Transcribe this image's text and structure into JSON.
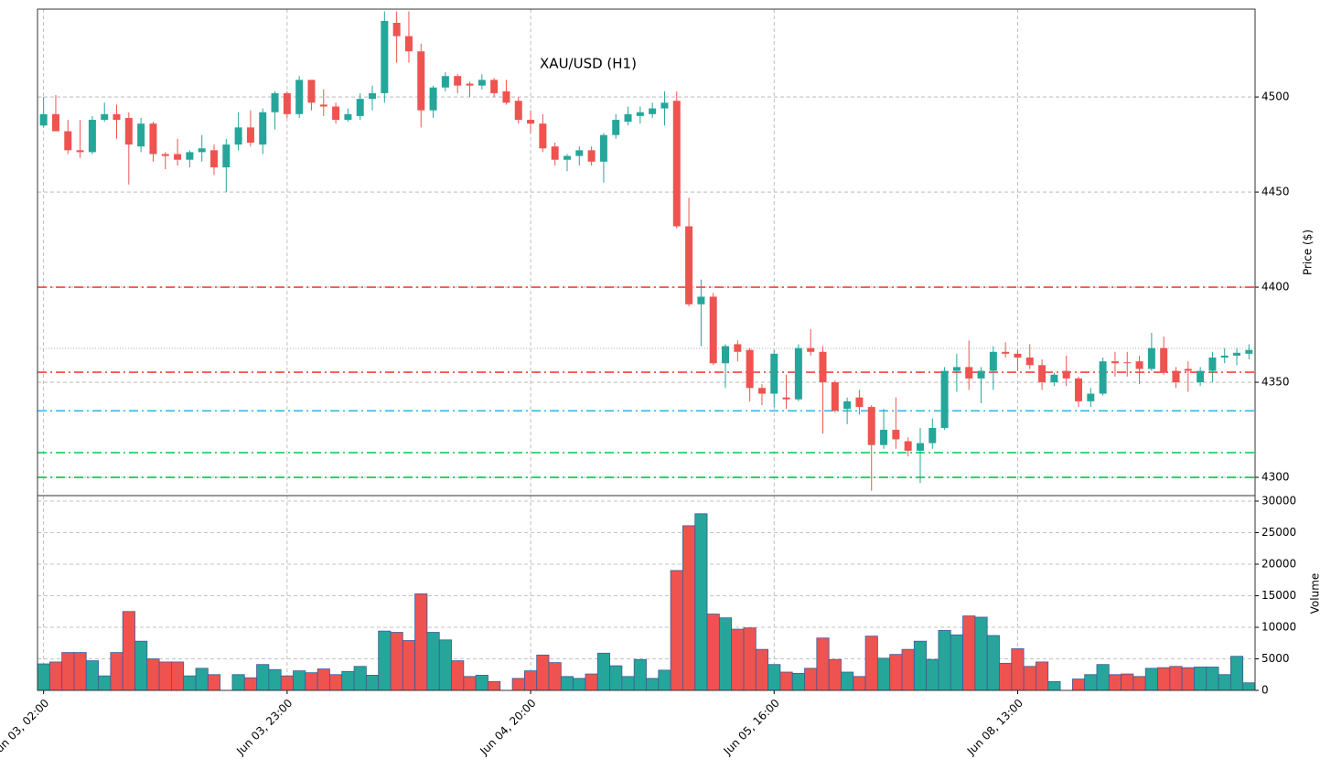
{
  "chart_data": [
    {
      "type": "candlestick",
      "title": "XAU/USD (H1)",
      "y_label": "Price ($)",
      "up_color": "#26a69a",
      "down_color": "#ef5350",
      "open": [
        4485,
        4491,
        4482,
        4472,
        4471,
        4488,
        4491,
        4489,
        4474,
        4486,
        4470,
        4470,
        4467,
        4471,
        4472,
        4463,
        4475,
        4484,
        4475,
        4492,
        4502,
        4491,
        4509,
        4496,
        4495,
        4488,
        4490,
        4499,
        4502,
        4539,
        4532,
        4524,
        4493,
        4505,
        4511,
        4507,
        4506,
        4509,
        4503,
        4498,
        4488,
        4486,
        4474,
        4467,
        4469,
        4472,
        4466,
        4480,
        4487,
        4490,
        4491,
        4494,
        4498,
        4432,
        4391,
        4395,
        4360,
        4370,
        4367,
        4347,
        4344,
        4342,
        4341,
        4368,
        4366,
        4350,
        4336,
        4342,
        4337,
        4317,
        4325,
        4319,
        4314,
        4318,
        4326,
        4356,
        4358,
        4352,
        4356,
        4366,
        4365,
        4363,
        4359,
        4350,
        4356,
        4352,
        4340,
        4344,
        4361,
        4360.5,
        4361,
        4357,
        4368,
        4356,
        4357,
        4350,
        4356,
        4363,
        4364,
        4365
      ],
      "high": [
        4500,
        4501,
        4488,
        4488,
        4490,
        4497,
        4496,
        4492,
        4489,
        4487,
        4471,
        4478,
        4472,
        4480,
        4475,
        4478,
        4492,
        4493,
        4494,
        4503,
        4503,
        4511,
        4509,
        4504,
        4497,
        4494,
        4502,
        4506,
        4545,
        4545,
        4545,
        4528,
        4506,
        4513,
        4512,
        4508,
        4512,
        4510,
        4509,
        4500,
        4493,
        4491,
        4476,
        4470,
        4474,
        4474,
        4481,
        4491,
        4495,
        4495,
        4497,
        4503,
        4503,
        4447,
        4404,
        4397,
        4370,
        4372,
        4368,
        4349,
        4367,
        4354,
        4370,
        4378,
        4369,
        4351,
        4342,
        4346,
        4338,
        4336,
        4342,
        4321,
        4326,
        4331,
        4358,
        4365,
        4372,
        4358,
        4369,
        4371,
        4367,
        4370,
        4362,
        4355,
        4364,
        4353,
        4347,
        4363,
        4366,
        4366,
        4364,
        4376,
        4374,
        4358,
        4361,
        4358,
        4366,
        4368,
        4368,
        4370
      ],
      "low": [
        4484,
        4482,
        4470,
        4468,
        4470,
        4487,
        4478,
        4454,
        4471,
        4466,
        4462,
        4464,
        4463,
        4466,
        4459,
        4450,
        4472,
        4474,
        4470,
        4483,
        4489,
        4489,
        4493,
        4490,
        4486,
        4487,
        4488,
        4493,
        4497,
        4518,
        4518,
        4484,
        4489,
        4503,
        4502,
        4500,
        4504,
        4500,
        4496,
        4486,
        4481,
        4471,
        4464,
        4461,
        4464,
        4464,
        4455,
        4478,
        4485,
        4486,
        4489,
        4485,
        4431,
        4390,
        4369,
        4359,
        4347,
        4361,
        4340,
        4338,
        4337,
        4336,
        4340,
        4364,
        4323,
        4334,
        4328,
        4333,
        4293,
        4315,
        4315,
        4311,
        4297,
        4315,
        4325,
        4345,
        4346,
        4339,
        4346,
        4363,
        4356,
        4357,
        4346,
        4348,
        4348,
        4337,
        4337,
        4343,
        4353,
        4353,
        4349,
        4356,
        4354,
        4347,
        4345,
        4348,
        4350,
        4360,
        4359,
        4362
      ],
      "close": [
        4491,
        4482,
        4472,
        4471,
        4488,
        4491,
        4488,
        4475,
        4486,
        4470,
        4469,
        4467,
        4471,
        4473,
        4463,
        4475,
        4484,
        4476,
        4492,
        4502,
        4491,
        4509,
        4497,
        4495,
        4488,
        4491,
        4499,
        4502,
        4540,
        4532,
        4524,
        4493,
        4505,
        4511,
        4506,
        4506,
        4509,
        4502,
        4497,
        4488,
        4486,
        4473,
        4467,
        4469,
        4472,
        4466,
        4480,
        4488,
        4491,
        4492,
        4494,
        4497,
        4432,
        4391,
        4395,
        4360,
        4369,
        4366,
        4347,
        4344,
        4365,
        4341,
        4368,
        4366,
        4350,
        4335,
        4340,
        4337,
        4317,
        4325,
        4320,
        4314,
        4318,
        4326,
        4356,
        4358,
        4352,
        4356,
        4366,
        4365,
        4363,
        4359,
        4350,
        4354,
        4352,
        4340,
        4344,
        4361,
        4360,
        4360,
        4357,
        4368,
        4355,
        4350,
        4356,
        4356,
        4363,
        4364,
        4365.5,
        4367
      ],
      "ylim": [
        4290.4,
        4546.2
      ],
      "yticks": [
        4300,
        4350,
        4400,
        4450,
        4500
      ],
      "grid": true,
      "hlines": [
        {
          "value": 4400,
          "color": "#f44336",
          "style": "dashdot"
        },
        {
          "value": 4355.3,
          "color": "#f44336",
          "style": "dashdot"
        },
        {
          "value": 4335,
          "color": "#29b6e6",
          "style": "dashdot"
        },
        {
          "value": 4313,
          "color": "#00c853",
          "style": "dashdot"
        },
        {
          "value": 4300,
          "color": "#00c853",
          "style": "dashdot"
        },
        {
          "value": 4367.8,
          "color": "#999999",
          "style": "dotted"
        }
      ]
    },
    {
      "type": "bar",
      "y_label": "Volume",
      "edge_color": "#3d5a99",
      "categories": [
        "Jun 03, 02:00",
        null,
        null,
        null,
        null,
        null,
        null,
        null,
        null,
        null,
        null,
        null,
        null,
        null,
        null,
        null,
        null,
        null,
        null,
        null,
        "Jun 03, 23:00",
        null,
        null,
        null,
        null,
        null,
        null,
        null,
        null,
        null,
        null,
        null,
        null,
        null,
        null,
        null,
        null,
        null,
        null,
        null,
        "Jun 04, 20:00",
        null,
        null,
        null,
        null,
        null,
        null,
        null,
        null,
        null,
        null,
        null,
        null,
        null,
        null,
        null,
        null,
        null,
        null,
        null,
        "Jun 05, 16:00",
        null,
        null,
        null,
        null,
        null,
        null,
        null,
        null,
        null,
        null,
        null,
        null,
        null,
        null,
        null,
        null,
        null,
        null,
        null,
        "Jun 08, 13:00",
        null,
        null,
        null,
        null,
        null,
        null,
        null,
        null,
        null,
        null,
        null,
        null,
        null,
        null,
        null,
        null,
        null,
        null,
        null
      ],
      "values": [
        4200,
        4500,
        6000,
        6000,
        4700,
        2300,
        6000,
        12500,
        7800,
        5000,
        4500,
        4500,
        2300,
        3500,
        2500,
        0,
        2500,
        2000,
        4100,
        3300,
        2300,
        3100,
        2800,
        3400,
        2500,
        3000,
        3800,
        2400,
        9400,
        9200,
        7900,
        15300,
        9200,
        8000,
        4700,
        2200,
        2400,
        1400,
        0,
        1900,
        3100,
        5600,
        4400,
        2200,
        1900,
        2600,
        5900,
        3900,
        2200,
        4900,
        1900,
        3200,
        19000,
        26100,
        28000,
        12100,
        11500,
        9700,
        9900,
        6500,
        4100,
        2900,
        2700,
        3500,
        8300,
        4900,
        2900,
        2200,
        8600,
        5100,
        5700,
        6500,
        7800,
        4900,
        9500,
        8800,
        11800,
        11600,
        8700,
        4300,
        6600,
        3800,
        4500,
        1400,
        0,
        1800,
        2500,
        4100,
        2500,
        2600,
        2200,
        3500,
        3600,
        3800,
        3600,
        3700,
        3700,
        2500,
        5400,
        1200
      ],
      "ylim": [
        0,
        30870
      ],
      "yticks": [
        0,
        5000,
        10000,
        15000,
        20000,
        25000,
        30000
      ],
      "grid": true
    }
  ]
}
